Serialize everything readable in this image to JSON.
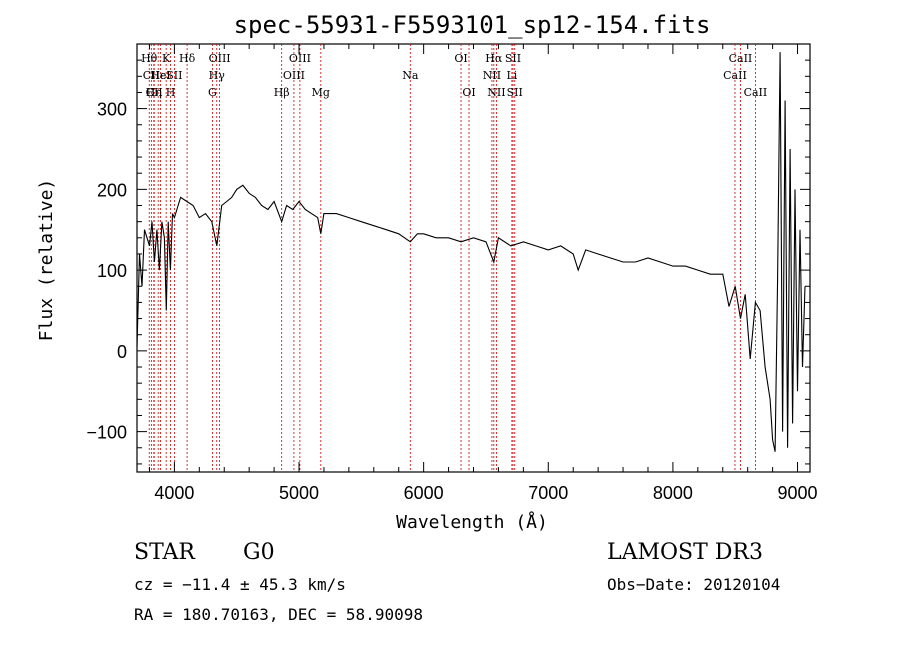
{
  "chart_data": {
    "type": "line",
    "title": "spec-55931-F5593101_sp12-154.fits",
    "xlabel": "Wavelength (Å)",
    "ylabel": "Flux (relative)",
    "xlim": [
      3700,
      9100
    ],
    "ylim": [
      -150,
      380
    ],
    "x_ticks": [
      4000,
      5000,
      6000,
      7000,
      8000,
      9000
    ],
    "y_ticks": [
      -100,
      0,
      100,
      200,
      300
    ],
    "grid": false,
    "line_color": "#000000",
    "marker_color": "#cc0000",
    "series": [
      {
        "name": "flux",
        "x": [
          3700,
          3720,
          3740,
          3760,
          3780,
          3800,
          3820,
          3840,
          3860,
          3880,
          3900,
          3920,
          3935,
          3950,
          3968,
          3985,
          4000,
          4050,
          4100,
          4150,
          4200,
          4250,
          4300,
          4340,
          4380,
          4420,
          4460,
          4500,
          4550,
          4600,
          4650,
          4700,
          4750,
          4800,
          4861,
          4900,
          4950,
          5000,
          5050,
          5100,
          5150,
          5175,
          5200,
          5300,
          5400,
          5500,
          5600,
          5700,
          5800,
          5893,
          5950,
          6000,
          6100,
          6200,
          6300,
          6400,
          6500,
          6563,
          6600,
          6700,
          6800,
          6900,
          7000,
          7100,
          7200,
          7240,
          7300,
          7400,
          7500,
          7600,
          7700,
          7800,
          7900,
          8000,
          8100,
          8200,
          8300,
          8400,
          8450,
          8500,
          8542,
          8580,
          8620,
          8662,
          8700,
          8740,
          8780,
          8800,
          8820,
          8840,
          8860,
          8880,
          8900,
          8920,
          8940,
          8960,
          8980,
          9000,
          9020,
          9040,
          9060
        ],
        "y": [
          5,
          120,
          80,
          150,
          140,
          130,
          160,
          110,
          150,
          100,
          160,
          140,
          50,
          160,
          100,
          170,
          165,
          190,
          185,
          180,
          165,
          170,
          160,
          130,
          180,
          185,
          190,
          200,
          205,
          195,
          190,
          180,
          175,
          185,
          160,
          180,
          175,
          185,
          175,
          170,
          165,
          145,
          170,
          170,
          165,
          160,
          155,
          150,
          145,
          135,
          145,
          145,
          140,
          140,
          135,
          140,
          135,
          110,
          140,
          130,
          135,
          130,
          125,
          130,
          120,
          100,
          125,
          120,
          115,
          110,
          110,
          115,
          110,
          105,
          105,
          100,
          95,
          95,
          55,
          80,
          40,
          70,
          -10,
          60,
          50,
          -20,
          -60,
          -110,
          -125,
          90,
          370,
          -100,
          310,
          -120,
          250,
          -90,
          200,
          -50,
          150,
          -20,
          80
        ]
      }
    ],
    "lines": [
      {
        "label": "Hθ",
        "x": 3798,
        "row": 1
      },
      {
        "label": "CII",
        "x": 3815,
        "row": 2
      },
      {
        "label": "CII",
        "x": 3838,
        "row": 3
      },
      {
        "label": "Hη",
        "x": 3835,
        "row": 3
      },
      {
        "label": "Hε",
        "x": 3870,
        "row": 2
      },
      {
        "label": "K",
        "x": 3934,
        "row": 1
      },
      {
        "label": "HeI",
        "x": 3889,
        "row": 2
      },
      {
        "label": "H",
        "x": 3969,
        "row": 3
      },
      {
        "label": "SII",
        "x": 4000,
        "row": 2
      },
      {
        "label": "Hδ",
        "x": 4102,
        "row": 1
      },
      {
        "label": "OIII",
        "x": 4363,
        "row": 1
      },
      {
        "label": "Hγ",
        "x": 4340,
        "row": 2
      },
      {
        "label": "G",
        "x": 4305,
        "row": 3
      },
      {
        "label": "Hβ",
        "x": 4861,
        "row": 3
      },
      {
        "label": "OIII",
        "x": 4959,
        "row": 2
      },
      {
        "label": "OIII",
        "x": 5007,
        "row": 1
      },
      {
        "label": "Mg",
        "x": 5175,
        "row": 3
      },
      {
        "label": "Na",
        "x": 5893,
        "row": 2
      },
      {
        "label": "OI",
        "x": 6300,
        "row": 1
      },
      {
        "label": "OI",
        "x": 6364,
        "row": 3
      },
      {
        "label": "Hα",
        "x": 6563,
        "row": 1
      },
      {
        "label": "NII",
        "x": 6548,
        "row": 2
      },
      {
        "label": "NII",
        "x": 6584,
        "row": 3
      },
      {
        "label": "SII",
        "x": 6717,
        "row": 1
      },
      {
        "label": "Li",
        "x": 6708,
        "row": 2
      },
      {
        "label": "SII",
        "x": 6731,
        "row": 3
      },
      {
        "label": "CaII",
        "x": 8498,
        "row": 2
      },
      {
        "label": "CaII",
        "x": 8542,
        "row": 1
      },
      {
        "label": "CaII",
        "x": 8662,
        "row": 3
      }
    ]
  },
  "info": {
    "type_label": "STAR",
    "subclass": "G0",
    "survey": "LAMOST DR3",
    "cz": "cz = −11.4 ± 45.3 km/s",
    "obs_date": "Obs−Date: 20120104",
    "coords": "RA = 180.70163, DEC =  58.90098"
  }
}
